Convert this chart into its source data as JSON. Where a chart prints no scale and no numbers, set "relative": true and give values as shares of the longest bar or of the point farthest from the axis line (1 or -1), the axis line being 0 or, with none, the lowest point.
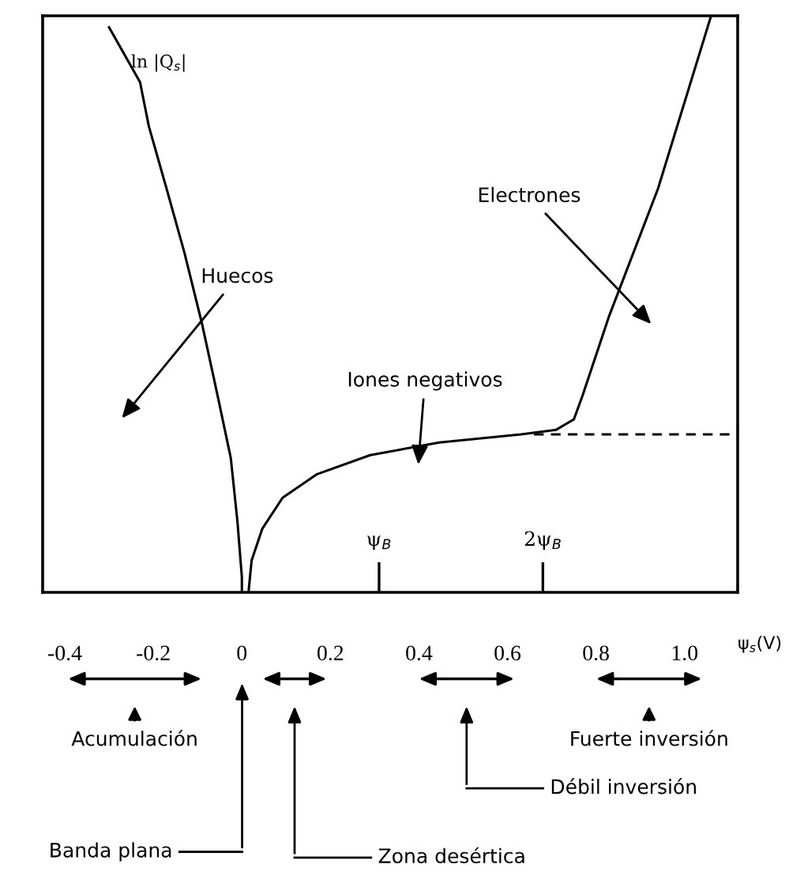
{
  "chart_data": {
    "type": "line",
    "relative": true,
    "ylabel": "ln |Q$_{s}$|",
    "xlabel": "ψ$_{s}$(V)",
    "xlim": [
      -0.45,
      1.12
    ],
    "xticks": [
      -0.4,
      -0.2,
      0,
      0.2,
      0.4,
      0.6,
      0.8,
      {
        "value": 1.0,
        "label": "1.0"
      }
    ],
    "tick_labels": "x",
    "grid": false,
    "legend": false,
    "marker": "none",
    "series": [
      {
        "color": "#000000",
        "line_style": "solid",
        "x": [
          -0.3,
          -0.23,
          -0.21,
          -0.17,
          -0.13,
          -0.09,
          -0.055,
          -0.025,
          -0.01,
          0.0,
          0.0
        ],
        "values": [
          0.98,
          0.885,
          0.808,
          0.7,
          0.59,
          0.466,
          0.342,
          0.233,
          0.123,
          0.027,
          0
        ]
      },
      {
        "color": "#000000",
        "line_style": "solid",
        "x": [
          0.015,
          0.022,
          0.046,
          0.092,
          0.17,
          0.29,
          0.446,
          0.63,
          0.71,
          0.75,
          0.77,
          0.83,
          0.94,
          1.06
        ],
        "values": [
          0,
          0.055,
          0.11,
          0.164,
          0.205,
          0.238,
          0.26,
          0.274,
          0.282,
          0.3,
          0.342,
          0.48,
          0.7,
          1
        ]
      },
      {
        "color": "#000000",
        "line_style": "dashed",
        "x": [
          0.66,
          1.12
        ],
        "values": [
          0.274,
          0.274
        ]
      }
    ],
    "ref_lines": [
      {
        "axis": "x",
        "value": 0.31,
        "label": "ψ$_{B}$"
      },
      {
        "axis": "x",
        "value": 0.68,
        "label": "2ψ$_{B}$"
      }
    ],
    "annotations": [
      "Huecos",
      "Electrones",
      "Iones negativos",
      "Acumulación",
      "Banda plana",
      "Zona desértica",
      "Débil inversión",
      "Fuerte inversión"
    ]
  }
}
